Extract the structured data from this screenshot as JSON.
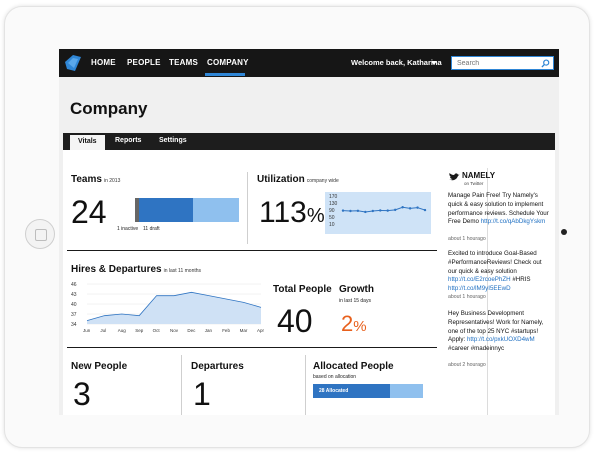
{
  "nav": {
    "items": [
      "HOME",
      "PEOPLE",
      "TEAMS",
      "COMPANY"
    ],
    "active": "COMPANY",
    "welcome": "Welcome back, Katharina",
    "search_placeholder": "Search"
  },
  "page_title": "Company",
  "subtabs": [
    "Vitals",
    "Reports",
    "Settings"
  ],
  "teams": {
    "title": "Teams",
    "sub": "in 2013",
    "count": "24",
    "inactive": "1 inactive",
    "draft": "11 draft"
  },
  "utilization": {
    "title": "Utilization",
    "sub": "company wide",
    "value": "113",
    "unit": "%",
    "chart_data": {
      "type": "line",
      "y_ticks": [
        "170",
        "130",
        "90",
        "50",
        "10"
      ],
      "values": [
        92,
        90,
        91,
        85,
        90,
        93,
        92,
        96,
        110,
        104,
        108,
        95
      ]
    }
  },
  "hires": {
    "title": "Hires & Departures",
    "sub": "in last 11 months",
    "chart_data": {
      "type": "area",
      "categories": [
        "Jun",
        "Jul",
        "Aug",
        "Sep",
        "Oct",
        "Nov",
        "Dec",
        "Jan",
        "Feb",
        "Mar",
        "Apr"
      ],
      "values": [
        35,
        36.5,
        37,
        36.5,
        42.5,
        42.5,
        43.5,
        42.5,
        41.5,
        40.5,
        39
      ],
      "y_ticks": [
        "46",
        "43",
        "40",
        "37",
        "34"
      ],
      "ylim": [
        34,
        46
      ]
    }
  },
  "total_people": {
    "title": "Total People",
    "value": "40"
  },
  "growth": {
    "title": "Growth",
    "sub": "in last 15 days",
    "value": "2",
    "unit": "%",
    "color": "#e8601c"
  },
  "new_people": {
    "title": "New People",
    "value": "3"
  },
  "departures": {
    "title": "Departures",
    "value": "1"
  },
  "allocated": {
    "title": "Allocated People",
    "sub": "based on allocation",
    "bar_label": "28 Allocated",
    "fraction": 0.7
  },
  "twitter": {
    "brand": "NAMELY",
    "brand_sub": "on Twitter",
    "tweets": [
      {
        "text": "Manage Pain Free! Try Namely's quick & easy solution to implement performance reviews. Schedule Your Free Demo",
        "link": "http://t.co/qAbDkgYskm",
        "time": "about 1 hourago"
      },
      {
        "text": "Excited to introduce Goal-Based #PerformanceReviews! Check out our quick & easy solution",
        "link": "http://t.co/E2rcoePhZH",
        "extra": "#HRIS",
        "link2": "http://t.co/lM9yI5EEwD",
        "time": "about 1 hourago"
      },
      {
        "text": "Hey Business Development Representatives! Work for Namely, one of the top 25 NYC #startups! Apply:",
        "link": "http://t.co/pxkUOXD4wM",
        "extra": "#career #madeinnyc",
        "time": "about 2 hourago"
      }
    ]
  },
  "colors": {
    "accent": "#2f86d6",
    "bar_dark": "#2f74c2",
    "bar_light": "#8fc0ee",
    "growth": "#e8601c"
  }
}
